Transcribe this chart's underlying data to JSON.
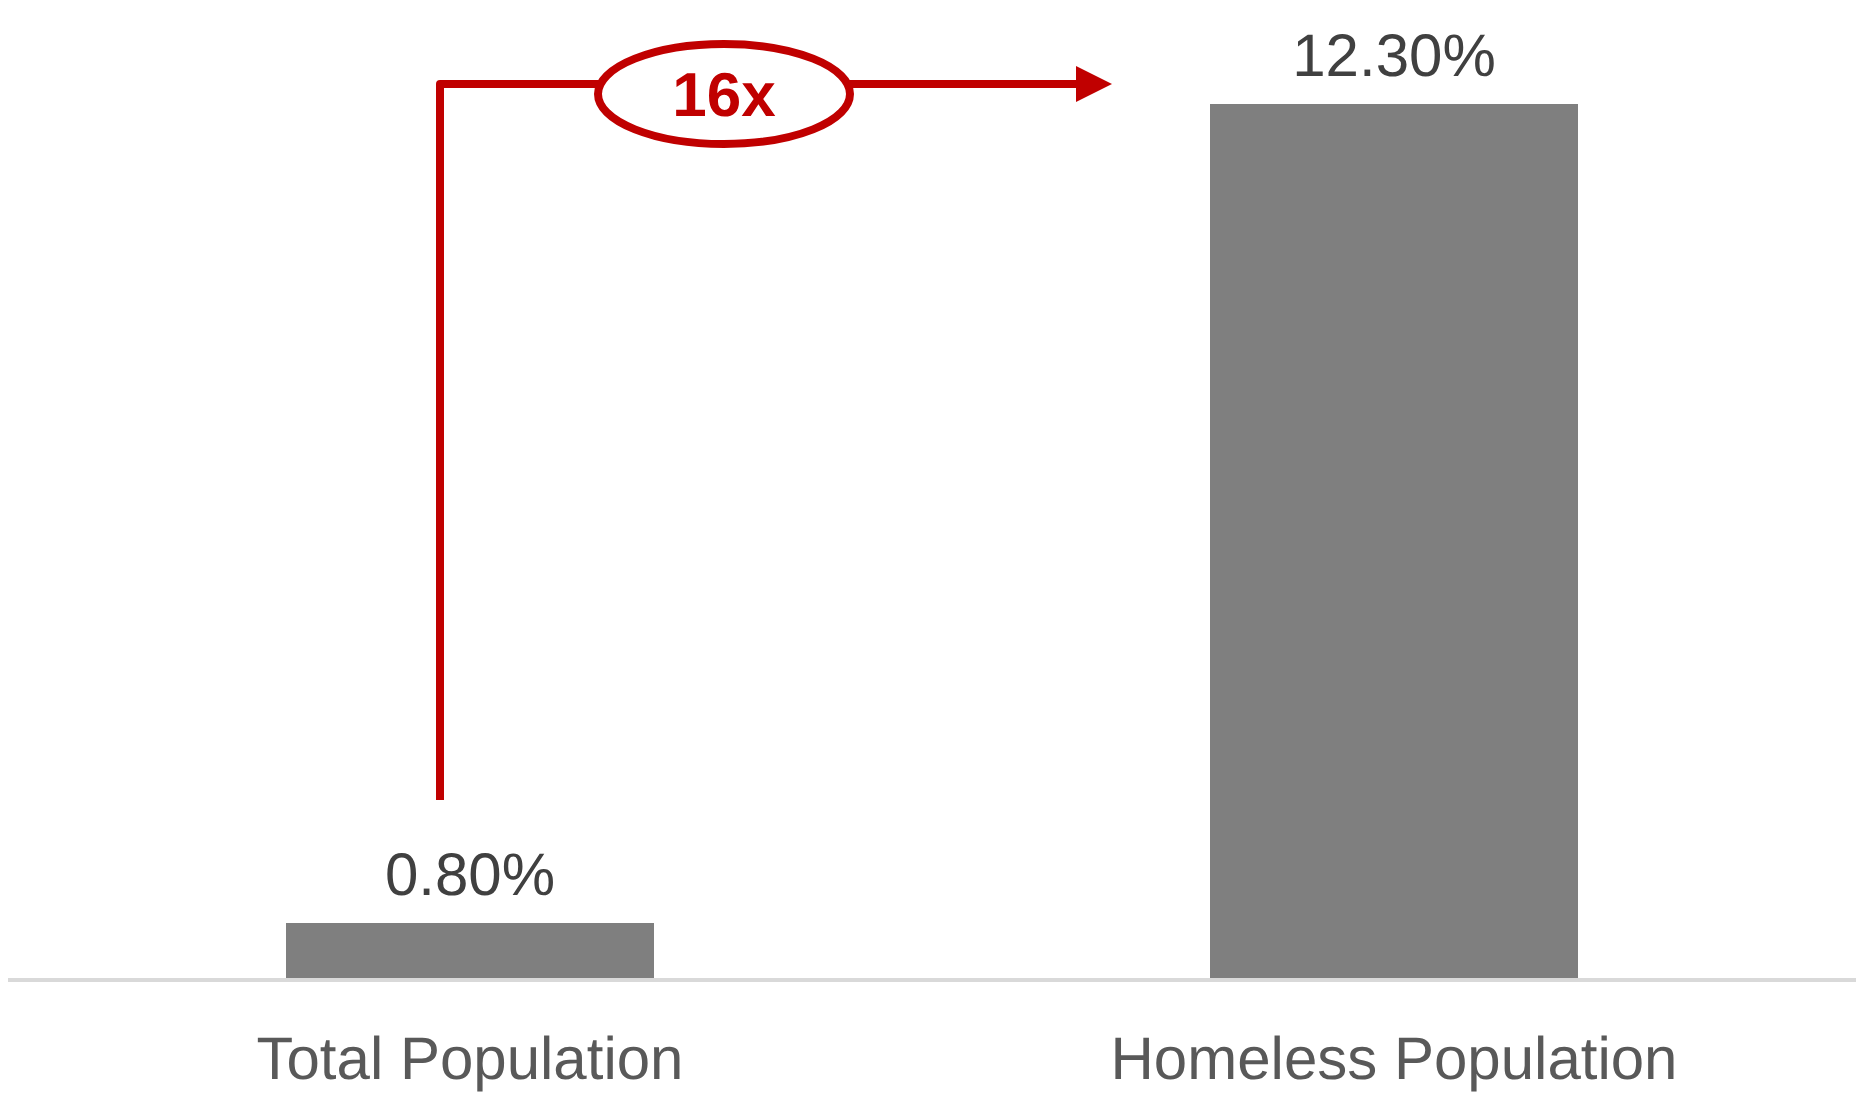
{
  "chart_data": {
    "type": "bar",
    "categories": [
      "Total Population",
      "Homeless Population"
    ],
    "values": [
      0.8,
      12.3
    ],
    "value_labels": [
      "0.80%",
      "12.30%"
    ],
    "color": "#7f7f7f",
    "annotations": [
      "16x"
    ]
  }
}
